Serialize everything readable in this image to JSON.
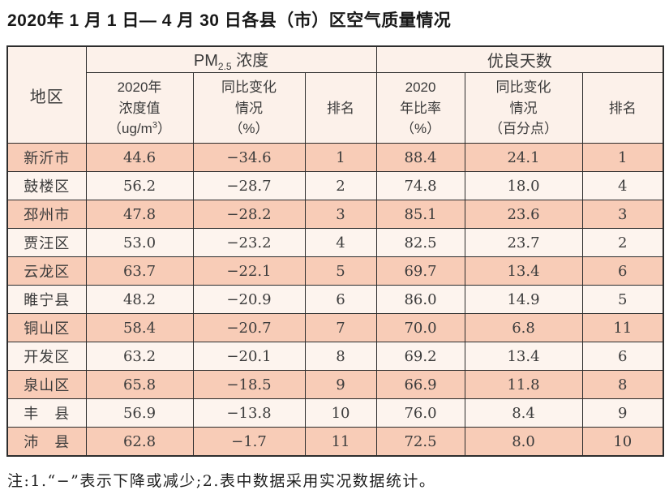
{
  "page": {
    "title": "2020年 1 月 1 日— 4 月 30 日各县（市）区空气质量情况",
    "footnote": "注:1.“−”表示下降或减少;2.表中数据采用实况数据统计。"
  },
  "colors": {
    "row_odd_bg": "#f8ccb7",
    "row_even_bg": "#fdf4ee",
    "header_bg": "#fcf1ea",
    "border": "#2d2d2d",
    "text": "#3a3a3a"
  },
  "table": {
    "header": {
      "region": "地区",
      "pm25_group": {
        "pm": "PM",
        "sub": "2.5",
        "rest": " 浓度"
      },
      "good_days_group": "优良天数",
      "pm_value": {
        "line1": "2020年",
        "line2": "浓度值",
        "unit_open": "（ug/m",
        "unit_sup": "3",
        "unit_close": "）"
      },
      "pm_change": {
        "line1": "同比变化",
        "line2": "情况",
        "line3": "（%）"
      },
      "pm_rank": "排名",
      "days_ratio": {
        "line1": "2020",
        "line2": "年比率",
        "line3": "（%）"
      },
      "days_change": {
        "line1": "同比变化",
        "line2": "情况",
        "line3": "（百分点）"
      },
      "days_rank": "排名"
    },
    "rows": [
      {
        "region": "新沂市",
        "pm_value": "44.6",
        "pm_change": "−34.6",
        "pm_rank": "1",
        "days_ratio": "88.4",
        "days_change": "24.1",
        "days_rank": "1"
      },
      {
        "region": "鼓楼区",
        "pm_value": "56.2",
        "pm_change": "−28.7",
        "pm_rank": "2",
        "days_ratio": "74.8",
        "days_change": "18.0",
        "days_rank": "4"
      },
      {
        "region": "邳州市",
        "pm_value": "47.8",
        "pm_change": "−28.2",
        "pm_rank": "3",
        "days_ratio": "85.1",
        "days_change": "23.6",
        "days_rank": "3"
      },
      {
        "region": "贾汪区",
        "pm_value": "53.0",
        "pm_change": "−23.2",
        "pm_rank": "4",
        "days_ratio": "82.5",
        "days_change": "23.7",
        "days_rank": "2"
      },
      {
        "region": "云龙区",
        "pm_value": "63.7",
        "pm_change": "−22.1",
        "pm_rank": "5",
        "days_ratio": "69.7",
        "days_change": "13.4",
        "days_rank": "6"
      },
      {
        "region": "睢宁县",
        "pm_value": "48.2",
        "pm_change": "−20.9",
        "pm_rank": "6",
        "days_ratio": "86.0",
        "days_change": "14.9",
        "days_rank": "5"
      },
      {
        "region": "铜山区",
        "pm_value": "58.4",
        "pm_change": "−20.7",
        "pm_rank": "7",
        "days_ratio": "70.0",
        "days_change": "6.8",
        "days_rank": "11"
      },
      {
        "region": "开发区",
        "pm_value": "63.2",
        "pm_change": "−20.1",
        "pm_rank": "8",
        "days_ratio": "69.2",
        "days_change": "13.4",
        "days_rank": "6"
      },
      {
        "region": "泉山区",
        "pm_value": "65.8",
        "pm_change": "−18.5",
        "pm_rank": "9",
        "days_ratio": "66.9",
        "days_change": "11.8",
        "days_rank": "8"
      },
      {
        "region": "丰　县",
        "pm_value": "56.9",
        "pm_change": "−13.8",
        "pm_rank": "10",
        "days_ratio": "76.0",
        "days_change": "8.4",
        "days_rank": "9"
      },
      {
        "region": "沛　县",
        "pm_value": "62.8",
        "pm_change": "−1.7",
        "pm_rank": "11",
        "days_ratio": "72.5",
        "days_change": "8.0",
        "days_rank": "10"
      }
    ]
  }
}
